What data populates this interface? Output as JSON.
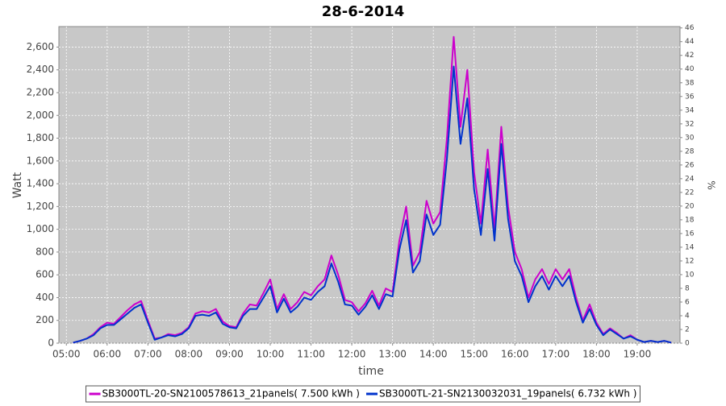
{
  "chart_data": {
    "type": "line",
    "title": "28-6-2014",
    "x_label": "time",
    "y_label": "Watt",
    "y2_label": "%",
    "x": [
      310,
      320,
      330,
      340,
      350,
      360,
      370,
      380,
      390,
      400,
      410,
      420,
      430,
      440,
      450,
      460,
      470,
      480,
      490,
      500,
      510,
      520,
      530,
      540,
      550,
      560,
      570,
      580,
      590,
      600,
      610,
      620,
      630,
      640,
      650,
      660,
      670,
      680,
      690,
      700,
      710,
      720,
      730,
      740,
      750,
      760,
      770,
      780,
      790,
      800,
      810,
      820,
      830,
      840,
      850,
      860,
      870,
      880,
      890,
      900,
      910,
      920,
      930,
      940,
      950,
      960,
      970,
      980,
      990,
      1000,
      1010,
      1020,
      1030,
      1040,
      1050,
      1060,
      1070,
      1080,
      1090,
      1100,
      1110,
      1120,
      1130,
      1140,
      1150,
      1160,
      1170,
      1180,
      1190
    ],
    "series": [
      {
        "name": "SB3000TL-20-SN2100578613_21panels( 7.500 kWh )",
        "color": "#cc00cc",
        "values": [
          5,
          20,
          40,
          80,
          140,
          180,
          170,
          230,
          290,
          340,
          370,
          200,
          40,
          50,
          80,
          70,
          90,
          140,
          260,
          280,
          270,
          300,
          190,
          150,
          140,
          260,
          340,
          330,
          440,
          560,
          300,
          430,
          300,
          360,
          450,
          420,
          500,
          560,
          770,
          600,
          380,
          360,
          280,
          350,
          460,
          330,
          480,
          450,
          900,
          1200,
          680,
          800,
          1250,
          1050,
          1150,
          1800,
          2690,
          1900,
          2400,
          1500,
          1050,
          1700,
          1000,
          1900,
          1200,
          800,
          650,
          400,
          560,
          650,
          520,
          650,
          560,
          650,
          400,
          200,
          340,
          180,
          80,
          130,
          90,
          40,
          70,
          30,
          10,
          20,
          10,
          20,
          5
        ]
      },
      {
        "name": "SB3000TL-21-SN2130032031_19panels( 6.732 kWh )",
        "color": "#0033cc",
        "values": [
          5,
          20,
          40,
          70,
          130,
          160,
          160,
          210,
          260,
          310,
          340,
          180,
          30,
          50,
          70,
          60,
          80,
          130,
          240,
          250,
          240,
          270,
          170,
          140,
          130,
          240,
          300,
          300,
          400,
          500,
          270,
          390,
          270,
          320,
          400,
          380,
          450,
          500,
          700,
          540,
          340,
          330,
          250,
          320,
          420,
          300,
          430,
          410,
          820,
          1080,
          620,
          720,
          1130,
          950,
          1040,
          1620,
          2430,
          1750,
          2150,
          1350,
          950,
          1530,
          900,
          1750,
          1090,
          720,
          590,
          360,
          500,
          590,
          470,
          590,
          500,
          590,
          360,
          180,
          300,
          160,
          70,
          120,
          80,
          40,
          60,
          30,
          10,
          20,
          10,
          20,
          5
        ]
      }
    ],
    "xlim": [
      289,
      1203
    ],
    "xticks": [
      {
        "value": 300,
        "label": "05:00"
      },
      {
        "value": 360,
        "label": "06:00"
      },
      {
        "value": 420,
        "label": "07:00"
      },
      {
        "value": 480,
        "label": "08:00"
      },
      {
        "value": 540,
        "label": "09:00"
      },
      {
        "value": 600,
        "label": "10:00"
      },
      {
        "value": 660,
        "label": "11:00"
      },
      {
        "value": 720,
        "label": "12:00"
      },
      {
        "value": 780,
        "label": "13:00"
      },
      {
        "value": 840,
        "label": "14:00"
      },
      {
        "value": 900,
        "label": "15:00"
      },
      {
        "value": 960,
        "label": "16:00"
      },
      {
        "value": 1020,
        "label": "17:00"
      },
      {
        "value": 1080,
        "label": "18:00"
      },
      {
        "value": 1140,
        "label": "19:00"
      }
    ],
    "ylim": [
      0,
      2780
    ],
    "yticks": [
      0,
      200,
      400,
      600,
      800,
      {
        "value": 1000,
        "label": "1,000"
      },
      {
        "value": 1200,
        "label": "1,200"
      },
      {
        "value": 1400,
        "label": "1,400"
      },
      {
        "value": 1600,
        "label": "1,600"
      },
      {
        "value": 1800,
        "label": "1,800"
      },
      {
        "value": 2000,
        "label": "2,000"
      },
      {
        "value": 2200,
        "label": "2,200"
      },
      {
        "value": 2400,
        "label": "2,400"
      },
      {
        "value": 2600,
        "label": "2,600"
      }
    ],
    "y2lim": [
      0,
      46.2
    ],
    "y2ticks": [
      0,
      2,
      4,
      6,
      8,
      10,
      12,
      14,
      16,
      18,
      20,
      22,
      24,
      26,
      28,
      30,
      32,
      34,
      36,
      38,
      40,
      42,
      44,
      46
    ],
    "grid": true,
    "legend": "bottom"
  }
}
